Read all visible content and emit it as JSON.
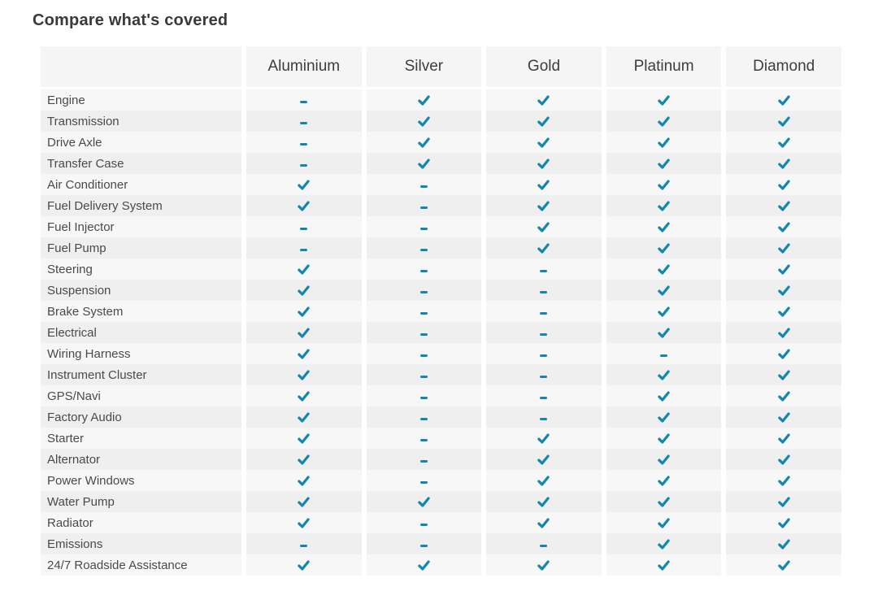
{
  "title": "Compare what's covered",
  "colors": {
    "accent": "#1386ad",
    "header_bg": "#f5f5f5",
    "row_odd_bg": "#f7f7f7",
    "row_even_bg": "#efefef",
    "title_text": "#3a3a3a",
    "label_text": "#4a4a4a"
  },
  "icons": {
    "covered": "check-icon",
    "not_covered": "dash-icon"
  },
  "table": {
    "columns": [
      "Aluminium",
      "Silver",
      "Gold",
      "Platinum",
      "Diamond"
    ],
    "rows": [
      {
        "label": "Engine",
        "values": [
          false,
          true,
          true,
          true,
          true
        ]
      },
      {
        "label": "Transmission",
        "values": [
          false,
          true,
          true,
          true,
          true
        ]
      },
      {
        "label": "Drive Axle",
        "values": [
          false,
          true,
          true,
          true,
          true
        ]
      },
      {
        "label": "Transfer Case",
        "values": [
          false,
          true,
          true,
          true,
          true
        ]
      },
      {
        "label": "Air Conditioner",
        "values": [
          true,
          false,
          true,
          true,
          true
        ]
      },
      {
        "label": "Fuel Delivery System",
        "values": [
          true,
          false,
          true,
          true,
          true
        ]
      },
      {
        "label": "Fuel Injector",
        "values": [
          false,
          false,
          true,
          true,
          true
        ]
      },
      {
        "label": "Fuel Pump",
        "values": [
          false,
          false,
          true,
          true,
          true
        ]
      },
      {
        "label": "Steering",
        "values": [
          true,
          false,
          false,
          true,
          true
        ]
      },
      {
        "label": "Suspension",
        "values": [
          true,
          false,
          false,
          true,
          true
        ]
      },
      {
        "label": "Brake System",
        "values": [
          true,
          false,
          false,
          true,
          true
        ]
      },
      {
        "label": "Electrical",
        "values": [
          true,
          false,
          false,
          true,
          true
        ]
      },
      {
        "label": "Wiring Harness",
        "values": [
          true,
          false,
          false,
          false,
          true
        ]
      },
      {
        "label": "Instrument Cluster",
        "values": [
          true,
          false,
          false,
          true,
          true
        ]
      },
      {
        "label": "GPS/Navi",
        "values": [
          true,
          false,
          false,
          true,
          true
        ]
      },
      {
        "label": "Factory Audio",
        "values": [
          true,
          false,
          false,
          true,
          true
        ]
      },
      {
        "label": "Starter",
        "values": [
          true,
          false,
          true,
          true,
          true
        ]
      },
      {
        "label": "Alternator",
        "values": [
          true,
          false,
          true,
          true,
          true
        ]
      },
      {
        "label": "Power Windows",
        "values": [
          true,
          false,
          true,
          true,
          true
        ]
      },
      {
        "label": "Water Pump",
        "values": [
          true,
          true,
          true,
          true,
          true
        ]
      },
      {
        "label": "Radiator",
        "values": [
          true,
          false,
          true,
          true,
          true
        ]
      },
      {
        "label": "Emissions",
        "values": [
          false,
          false,
          false,
          true,
          true
        ]
      },
      {
        "label": "24/7 Roadside Assistance",
        "values": [
          true,
          true,
          true,
          true,
          true
        ]
      }
    ]
  }
}
